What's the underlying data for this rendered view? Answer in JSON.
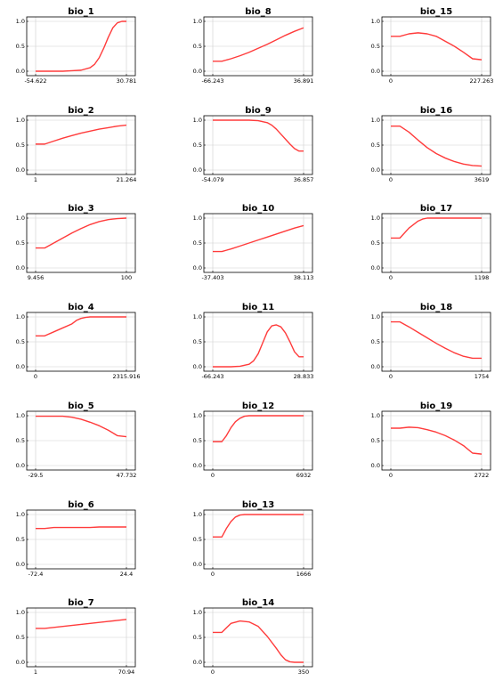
{
  "chart_data": [
    {
      "type": "line",
      "title": "bio_1",
      "xticks": [
        "-54.622",
        "30.781"
      ],
      "yticks": [
        "0.0",
        "0.5",
        "1.0"
      ],
      "ylim": [
        0,
        1
      ],
      "x": [
        0,
        0.1,
        0.2,
        0.3,
        0.4,
        0.5,
        0.6,
        0.65,
        0.7,
        0.75,
        0.8,
        0.85,
        0.9,
        0.95,
        1
      ],
      "y": [
        0,
        0,
        0,
        0,
        0.01,
        0.02,
        0.07,
        0.14,
        0.27,
        0.46,
        0.68,
        0.87,
        0.97,
        1,
        1
      ]
    },
    {
      "type": "line",
      "title": "bio_8",
      "xticks": [
        "-66.243",
        "36.891"
      ],
      "yticks": [
        "0.0",
        "0.5",
        "1.0"
      ],
      "ylim": [
        0,
        1
      ],
      "x": [
        0,
        0.1,
        0.2,
        0.3,
        0.4,
        0.5,
        0.6,
        0.7,
        0.8,
        0.9,
        1
      ],
      "y": [
        0.2,
        0.2,
        0.25,
        0.31,
        0.38,
        0.46,
        0.54,
        0.63,
        0.72,
        0.8,
        0.87
      ]
    },
    {
      "type": "line",
      "title": "bio_15",
      "xticks": [
        "0",
        "227.263"
      ],
      "yticks": [
        "0.0",
        "0.5",
        "1.0"
      ],
      "ylim": [
        0,
        1
      ],
      "x": [
        0,
        0.1,
        0.2,
        0.3,
        0.4,
        0.5,
        0.6,
        0.7,
        0.8,
        0.9,
        1
      ],
      "y": [
        0.7,
        0.7,
        0.75,
        0.77,
        0.75,
        0.7,
        0.6,
        0.5,
        0.38,
        0.25,
        0.23
      ]
    },
    {
      "type": "line",
      "title": "bio_2",
      "xticks": [
        "1",
        "21.264"
      ],
      "yticks": [
        "0.0",
        "0.5",
        "1.0"
      ],
      "ylim": [
        0,
        1
      ],
      "x": [
        0,
        0.1,
        0.2,
        0.3,
        0.4,
        0.5,
        0.6,
        0.7,
        0.8,
        0.9,
        1
      ],
      "y": [
        0.52,
        0.52,
        0.58,
        0.64,
        0.69,
        0.74,
        0.78,
        0.82,
        0.85,
        0.88,
        0.9
      ]
    },
    {
      "type": "line",
      "title": "bio_9",
      "xticks": [
        "-54.079",
        "36.857"
      ],
      "yticks": [
        "0.0",
        "0.5",
        "1.0"
      ],
      "ylim": [
        0,
        1
      ],
      "x": [
        0,
        0.1,
        0.2,
        0.3,
        0.4,
        0.5,
        0.6,
        0.65,
        0.7,
        0.75,
        0.8,
        0.85,
        0.9,
        0.95,
        1
      ],
      "y": [
        1,
        1,
        1,
        1,
        1,
        0.99,
        0.95,
        0.9,
        0.82,
        0.72,
        0.62,
        0.52,
        0.43,
        0.38,
        0.38
      ]
    },
    {
      "type": "line",
      "title": "bio_16",
      "xticks": [
        "0",
        "3619"
      ],
      "yticks": [
        "0.0",
        "0.5",
        "1.0"
      ],
      "ylim": [
        0,
        1
      ],
      "x": [
        0,
        0.1,
        0.2,
        0.3,
        0.4,
        0.5,
        0.6,
        0.7,
        0.8,
        0.9,
        1
      ],
      "y": [
        0.88,
        0.88,
        0.76,
        0.6,
        0.45,
        0.33,
        0.24,
        0.17,
        0.12,
        0.09,
        0.08
      ]
    },
    {
      "type": "line",
      "title": "bio_3",
      "xticks": [
        "9.456",
        "100"
      ],
      "yticks": [
        "0.0",
        "0.5",
        "1.0"
      ],
      "ylim": [
        0,
        1
      ],
      "x": [
        0,
        0.1,
        0.2,
        0.3,
        0.4,
        0.5,
        0.6,
        0.7,
        0.8,
        0.9,
        1
      ],
      "y": [
        0.4,
        0.4,
        0.5,
        0.6,
        0.7,
        0.79,
        0.87,
        0.93,
        0.97,
        0.99,
        1
      ]
    },
    {
      "type": "line",
      "title": "bio_10",
      "xticks": [
        "-37.403",
        "38.113"
      ],
      "yticks": [
        "0.0",
        "0.5",
        "1.0"
      ],
      "ylim": [
        0,
        1
      ],
      "x": [
        0,
        0.1,
        0.2,
        0.3,
        0.4,
        0.5,
        0.6,
        0.7,
        0.8,
        0.9,
        1
      ],
      "y": [
        0.33,
        0.33,
        0.38,
        0.44,
        0.5,
        0.56,
        0.62,
        0.68,
        0.74,
        0.8,
        0.85
      ]
    },
    {
      "type": "line",
      "title": "bio_17",
      "xticks": [
        "0",
        "1198"
      ],
      "yticks": [
        "0.0",
        "0.5",
        "1.0"
      ],
      "ylim": [
        0,
        1
      ],
      "x": [
        0,
        0.1,
        0.2,
        0.3,
        0.35,
        0.4,
        0.5,
        0.6,
        0.7,
        0.8,
        0.9,
        1
      ],
      "y": [
        0.6,
        0.6,
        0.8,
        0.94,
        0.98,
        1,
        1,
        1,
        1,
        1,
        1,
        1
      ]
    },
    {
      "type": "line",
      "title": "bio_4",
      "xticks": [
        "0",
        "2315.916"
      ],
      "yticks": [
        "0.0",
        "0.5",
        "1.0"
      ],
      "ylim": [
        0,
        1
      ],
      "x": [
        0,
        0.1,
        0.2,
        0.3,
        0.4,
        0.45,
        0.5,
        0.55,
        0.6,
        0.7,
        0.8,
        0.9,
        1
      ],
      "y": [
        0.62,
        0.62,
        0.7,
        0.78,
        0.86,
        0.93,
        0.97,
        0.99,
        1,
        1,
        1,
        1,
        1
      ]
    },
    {
      "type": "line",
      "title": "bio_11",
      "xticks": [
        "-66.243",
        "28.833"
      ],
      "yticks": [
        "0.0",
        "0.5",
        "1.0"
      ],
      "ylim": [
        0,
        1
      ],
      "x": [
        0,
        0.1,
        0.2,
        0.3,
        0.4,
        0.45,
        0.5,
        0.55,
        0.6,
        0.65,
        0.7,
        0.75,
        0.8,
        0.85,
        0.9,
        0.95,
        1
      ],
      "y": [
        0,
        0,
        0,
        0.01,
        0.05,
        0.12,
        0.26,
        0.48,
        0.7,
        0.82,
        0.84,
        0.8,
        0.68,
        0.5,
        0.3,
        0.2,
        0.2
      ]
    },
    {
      "type": "line",
      "title": "bio_18",
      "xticks": [
        "0",
        "1754"
      ],
      "yticks": [
        "0.0",
        "0.5",
        "1.0"
      ],
      "ylim": [
        0,
        1
      ],
      "x": [
        0,
        0.1,
        0.2,
        0.3,
        0.4,
        0.5,
        0.6,
        0.7,
        0.8,
        0.9,
        1
      ],
      "y": [
        0.9,
        0.9,
        0.8,
        0.69,
        0.58,
        0.47,
        0.37,
        0.28,
        0.21,
        0.17,
        0.17
      ]
    },
    {
      "type": "line",
      "title": "bio_5",
      "xticks": [
        "-29.5",
        "47.732"
      ],
      "yticks": [
        "0.0",
        "0.5",
        "1.0"
      ],
      "ylim": [
        0,
        1
      ],
      "x": [
        0,
        0.1,
        0.2,
        0.3,
        0.4,
        0.5,
        0.6,
        0.7,
        0.8,
        0.9,
        1
      ],
      "y": [
        0.99,
        0.99,
        0.99,
        0.99,
        0.97,
        0.93,
        0.87,
        0.8,
        0.71,
        0.6,
        0.58
      ]
    },
    {
      "type": "line",
      "title": "bio_12",
      "xticks": [
        "0",
        "6932"
      ],
      "yticks": [
        "0.0",
        "0.5",
        "1.0"
      ],
      "ylim": [
        0,
        1
      ],
      "x": [
        0,
        0.1,
        0.15,
        0.2,
        0.25,
        0.3,
        0.35,
        0.4,
        0.5,
        0.6,
        0.7,
        0.8,
        0.9,
        1
      ],
      "y": [
        0.48,
        0.48,
        0.6,
        0.76,
        0.88,
        0.95,
        0.99,
        1,
        1,
        1,
        1,
        1,
        1,
        1
      ]
    },
    {
      "type": "line",
      "title": "bio_19",
      "xticks": [
        "0",
        "2722"
      ],
      "yticks": [
        "0.0",
        "0.5",
        "1.0"
      ],
      "ylim": [
        0,
        1
      ],
      "x": [
        0,
        0.1,
        0.2,
        0.3,
        0.4,
        0.5,
        0.6,
        0.7,
        0.8,
        0.9,
        1
      ],
      "y": [
        0.75,
        0.75,
        0.77,
        0.76,
        0.72,
        0.67,
        0.6,
        0.51,
        0.4,
        0.25,
        0.23
      ]
    },
    {
      "type": "line",
      "title": "bio_6",
      "xticks": [
        "-72.4",
        "24.4"
      ],
      "yticks": [
        "0.0",
        "0.5",
        "1.0"
      ],
      "ylim": [
        0,
        1
      ],
      "x": [
        0,
        0.1,
        0.2,
        0.3,
        0.4,
        0.5,
        0.6,
        0.7,
        0.8,
        0.9,
        1
      ],
      "y": [
        0.72,
        0.72,
        0.74,
        0.74,
        0.74,
        0.74,
        0.74,
        0.75,
        0.75,
        0.75,
        0.75
      ]
    },
    {
      "type": "line",
      "title": "bio_13",
      "xticks": [
        "0",
        "1666"
      ],
      "yticks": [
        "0.0",
        "0.5",
        "1.0"
      ],
      "ylim": [
        0,
        1
      ],
      "x": [
        0,
        0.1,
        0.15,
        0.2,
        0.25,
        0.3,
        0.35,
        0.4,
        0.5,
        0.6,
        0.7,
        0.8,
        0.9,
        1
      ],
      "y": [
        0.55,
        0.55,
        0.72,
        0.86,
        0.95,
        0.99,
        1,
        1,
        1,
        1,
        1,
        1,
        1,
        1
      ]
    },
    {
      "type": "line",
      "title": "bio_7",
      "xticks": [
        "1",
        "70.94"
      ],
      "yticks": [
        "0.0",
        "0.5",
        "1.0"
      ],
      "ylim": [
        0,
        1
      ],
      "x": [
        0,
        0.1,
        0.2,
        0.3,
        0.4,
        0.5,
        0.6,
        0.7,
        0.8,
        0.9,
        1
      ],
      "y": [
        0.68,
        0.68,
        0.7,
        0.72,
        0.74,
        0.76,
        0.78,
        0.8,
        0.82,
        0.84,
        0.86
      ]
    },
    {
      "type": "line",
      "title": "bio_14",
      "xticks": [
        "0",
        "350"
      ],
      "yticks": [
        "0.0",
        "0.5",
        "1.0"
      ],
      "ylim": [
        0,
        1
      ],
      "x": [
        0,
        0.1,
        0.2,
        0.3,
        0.4,
        0.5,
        0.6,
        0.7,
        0.75,
        0.8,
        0.85,
        0.9,
        0.95,
        1
      ],
      "y": [
        0.6,
        0.6,
        0.78,
        0.83,
        0.81,
        0.72,
        0.52,
        0.28,
        0.15,
        0.05,
        0.01,
        0,
        0,
        0
      ]
    }
  ]
}
